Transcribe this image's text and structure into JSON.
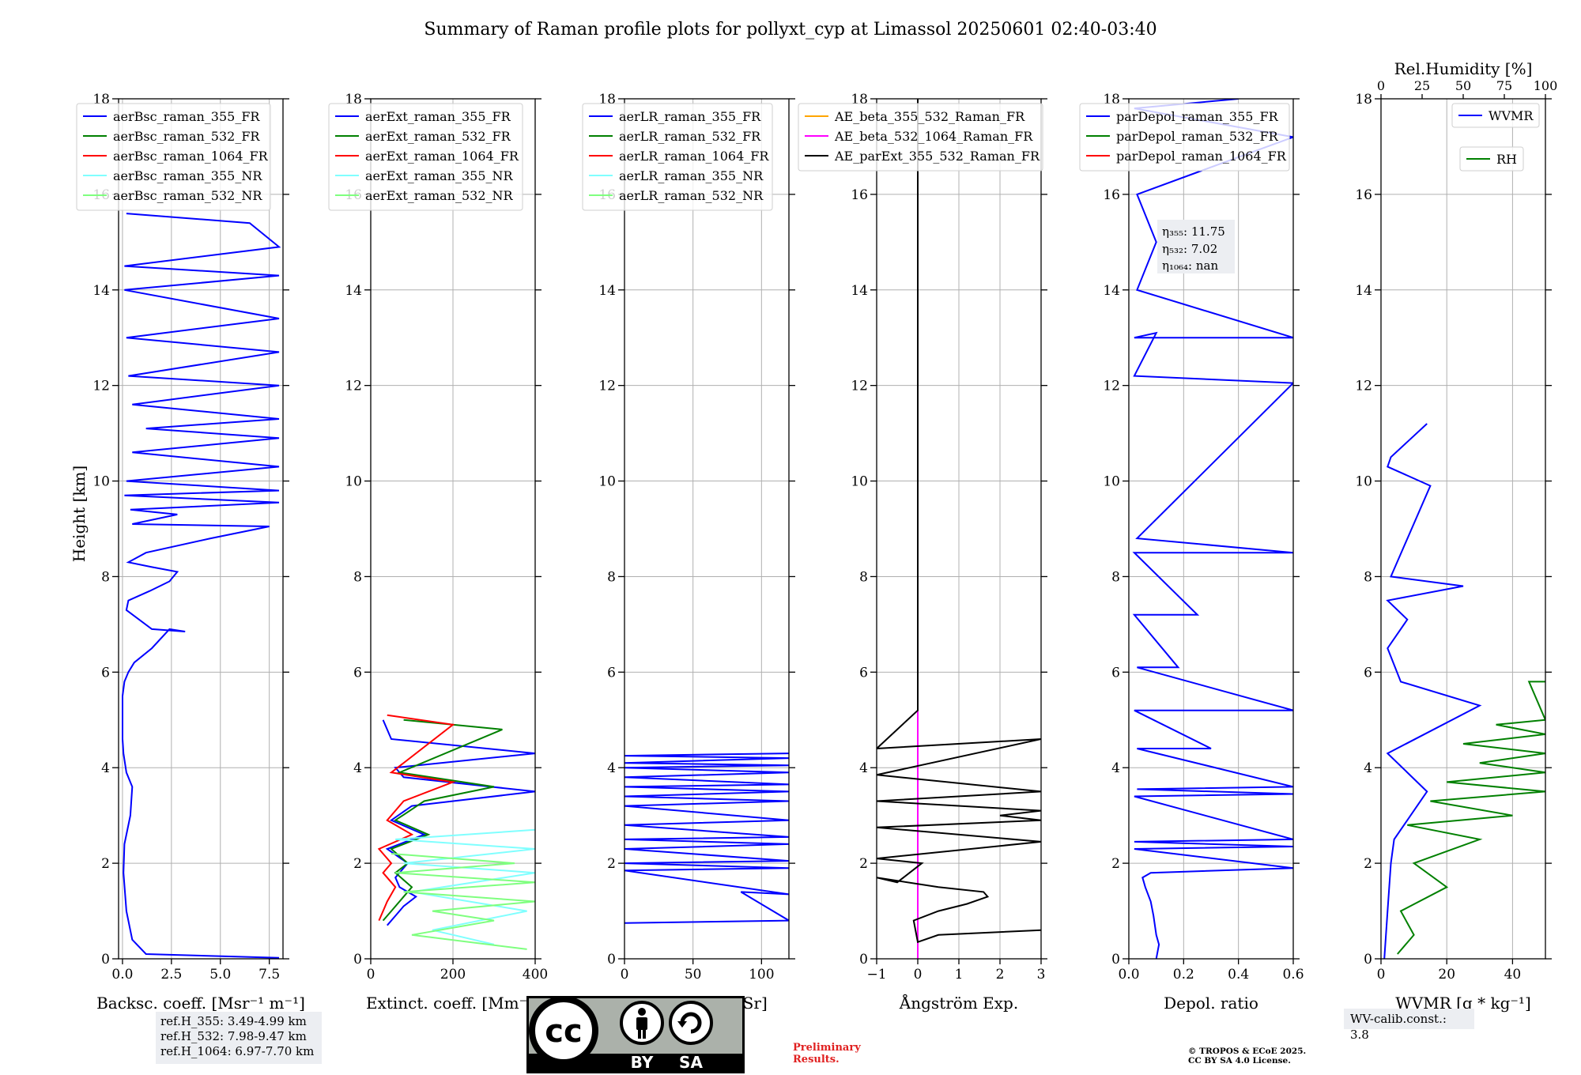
{
  "title": "Summary of Raman profile plots for pollyxt_cyp at Limassol 20250601 02:40-03:40",
  "ylabel": "Height [km]",
  "colors": {
    "blue": "#0000ff",
    "green": "#008000",
    "red": "#ff0000",
    "cyan": "#80ffff",
    "lightgreen": "#7fff7f",
    "orange": "#ffa500",
    "magenta": "#ff00ff",
    "black": "#000000",
    "grid": "#b0b0b0",
    "box_bg": "#eceef2"
  },
  "chart_data": [
    {
      "type": "line",
      "xlabel": "Backsc. coeff. [Msr⁻¹ m⁻¹]",
      "xlim": [
        -0.2,
        8.2
      ],
      "xticks": [
        "0.0",
        "2.5",
        "5.0",
        "7.5"
      ],
      "xtick_values": [
        0,
        2.5,
        5,
        7.5
      ],
      "ylim": [
        0,
        18
      ],
      "yticks": [
        "0",
        "2",
        "4",
        "6",
        "8",
        "10",
        "12",
        "14",
        "16",
        "18"
      ],
      "legend": [
        "aerBsc_raman_355_FR",
        "aerBsc_raman_532_FR",
        "aerBsc_raman_1064_FR",
        "aerBsc_raman_355_NR",
        "aerBsc_raman_532_NR"
      ],
      "legend_colors": [
        "blue",
        "green",
        "red",
        "cyan",
        "lightgreen"
      ],
      "legend_position": "top-left",
      "series": [
        {
          "name": "aerBsc_raman_355_FR",
          "color": "blue",
          "x": [
            8.0,
            1.2,
            0.5,
            0.2,
            0.05,
            0.1,
            0.4,
            0.5,
            0.2,
            0.05,
            0.0,
            0.0,
            0.1,
            0.3,
            0.6,
            1.5,
            2.4,
            3.2,
            1.5,
            0.2,
            0.3,
            1.4,
            2.4,
            2.8,
            1.5,
            0.3,
            1.2,
            4.5,
            7.5,
            0.5,
            2.8,
            0.4,
            8.0,
            0.1,
            8.0,
            0.2,
            8.0,
            0.5,
            8.0,
            1.2,
            8.0,
            0.5,
            8.0,
            0.3,
            8.0,
            0.2,
            8.0,
            0.1,
            8.0,
            0.1,
            8.0,
            6.5,
            0.2
          ],
          "y": [
            0.02,
            0.1,
            0.4,
            1.0,
            1.8,
            2.4,
            3.0,
            3.6,
            3.9,
            4.3,
            4.6,
            5.5,
            5.8,
            6.0,
            6.2,
            6.5,
            6.9,
            6.85,
            6.9,
            7.3,
            7.5,
            7.7,
            7.9,
            8.1,
            8.2,
            8.3,
            8.5,
            8.8,
            9.05,
            9.1,
            9.3,
            9.4,
            9.55,
            9.7,
            9.8,
            10.0,
            10.3,
            10.6,
            10.9,
            11.1,
            11.3,
            11.6,
            12.0,
            12.2,
            12.7,
            13.0,
            13.4,
            14.0,
            14.3,
            14.5,
            14.9,
            15.4,
            15.6
          ]
        },
        {
          "name": "aerBsc_raman_532_FR",
          "color": "green",
          "x": [],
          "y": []
        },
        {
          "name": "aerBsc_raman_1064_FR",
          "color": "red",
          "x": [],
          "y": []
        },
        {
          "name": "aerBsc_raman_355_NR",
          "color": "cyan",
          "x": [],
          "y": []
        },
        {
          "name": "aerBsc_raman_532_NR",
          "color": "lightgreen",
          "x": [],
          "y": []
        }
      ]
    },
    {
      "type": "line",
      "xlabel": "Extinct. coeff. [Mm⁻¹]",
      "xlim": [
        0,
        400
      ],
      "xticks": [
        "0",
        "200",
        "400"
      ],
      "xtick_values": [
        0,
        200,
        400
      ],
      "ylim": [
        0,
        18
      ],
      "yticks": [
        "0",
        "2",
        "4",
        "6",
        "8",
        "10",
        "12",
        "14",
        "16",
        "18"
      ],
      "legend": [
        "aerExt_raman_355_FR",
        "aerExt_raman_532_FR",
        "aerExt_raman_1064_FR",
        "aerExt_raman_355_NR",
        "aerExt_raman_532_NR"
      ],
      "legend_colors": [
        "blue",
        "green",
        "red",
        "cyan",
        "lightgreen"
      ],
      "legend_position": "top-left",
      "series": [
        {
          "name": "aerExt_raman_355_FR",
          "color": "blue",
          "x": [
            40,
            60,
            80,
            110,
            70,
            60,
            90,
            40,
            130,
            50,
            100,
            400,
            80,
            60,
            400,
            50,
            30
          ],
          "y": [
            0.7,
            0.9,
            1.1,
            1.3,
            1.5,
            1.7,
            2.0,
            2.3,
            2.6,
            2.9,
            3.2,
            3.5,
            3.8,
            4.0,
            4.3,
            4.6,
            5.0
          ]
        },
        {
          "name": "aerExt_raman_532_FR",
          "color": "green",
          "x": [
            30,
            50,
            70,
            100,
            60,
            90,
            50,
            140,
            60,
            130,
            300,
            70,
            320,
            80
          ],
          "y": [
            0.8,
            1.0,
            1.2,
            1.5,
            1.8,
            2.0,
            2.3,
            2.6,
            2.9,
            3.3,
            3.6,
            3.9,
            4.8,
            5.0
          ]
        },
        {
          "name": "aerExt_raman_1064_FR",
          "color": "red",
          "x": [
            20,
            30,
            40,
            60,
            30,
            50,
            20,
            100,
            40,
            80,
            200,
            50,
            200,
            40
          ],
          "y": [
            0.8,
            1.0,
            1.2,
            1.5,
            1.8,
            2.0,
            2.3,
            2.6,
            2.9,
            3.3,
            3.7,
            3.9,
            4.9,
            5.1
          ]
        },
        {
          "name": "aerExt_raman_355_NR",
          "color": "cyan",
          "x": [
            300,
            150,
            380,
            100,
            400,
            80,
            400,
            60,
            400
          ],
          "y": [
            0.3,
            0.6,
            1.0,
            1.4,
            1.8,
            2.0,
            2.3,
            2.5,
            2.7
          ]
        },
        {
          "name": "aerExt_raman_532_NR",
          "color": "lightgreen",
          "x": [
            380,
            100,
            300,
            150,
            400,
            80,
            400,
            60,
            350,
            50
          ],
          "y": [
            0.2,
            0.5,
            0.8,
            1.0,
            1.2,
            1.4,
            1.6,
            1.8,
            2.0,
            2.2
          ]
        }
      ]
    },
    {
      "type": "line",
      "xlabel": "Lidar ratio [Sr]",
      "xlim": [
        0,
        120
      ],
      "xticks": [
        "0",
        "50",
        "100"
      ],
      "xtick_values": [
        0,
        50,
        100
      ],
      "ylim": [
        0,
        18
      ],
      "yticks": [
        "0",
        "2",
        "4",
        "6",
        "8",
        "10",
        "12",
        "14",
        "16",
        "18"
      ],
      "legend": [
        "aerLR_raman_355_FR",
        "aerLR_raman_532_FR",
        "aerLR_raman_1064_FR",
        "aerLR_raman_355_NR",
        "aerLR_raman_532_NR"
      ],
      "legend_colors": [
        "blue",
        "green",
        "red",
        "cyan",
        "lightgreen"
      ],
      "legend_position": "top-left",
      "series": [
        {
          "name": "aerLR_raman_355_FR",
          "color": "blue",
          "x": [
            0,
            120,
            85,
            120,
            0,
            120,
            0,
            120,
            0,
            120,
            0,
            120,
            0,
            120,
            0,
            120,
            0,
            120,
            0,
            120,
            0,
            120,
            0,
            120,
            0,
            120,
            0,
            120
          ],
          "y": [
            0.75,
            0.8,
            1.4,
            1.35,
            1.85,
            1.9,
            2.0,
            2.05,
            2.3,
            2.4,
            2.5,
            2.55,
            2.8,
            2.9,
            3.2,
            3.3,
            3.4,
            3.5,
            3.6,
            3.65,
            3.8,
            3.9,
            4.0,
            4.05,
            4.1,
            4.2,
            4.25,
            4.3
          ]
        },
        {
          "name": "aerLR_raman_532_FR",
          "color": "green",
          "x": [],
          "y": []
        },
        {
          "name": "aerLR_raman_1064_FR",
          "color": "red",
          "x": [],
          "y": []
        },
        {
          "name": "aerLR_raman_355_NR",
          "color": "cyan",
          "x": [],
          "y": []
        },
        {
          "name": "aerLR_raman_532_NR",
          "color": "lightgreen",
          "x": [],
          "y": []
        }
      ]
    },
    {
      "type": "line",
      "xlabel": "Ångström Exp.",
      "xlim": [
        -1,
        3
      ],
      "xticks": [
        "−1",
        "0",
        "1",
        "2",
        "3"
      ],
      "xtick_values": [
        -1,
        0,
        1,
        2,
        3
      ],
      "ylim": [
        0,
        18
      ],
      "yticks": [
        "0",
        "2",
        "4",
        "6",
        "8",
        "10",
        "12",
        "14",
        "16",
        "18"
      ],
      "legend": [
        "AE_beta_355_532_Raman_FR",
        "AE_beta_532_1064_Raman_FR",
        "AE_parExt_355_532_Raman_FR"
      ],
      "legend_colors": [
        "orange",
        "magenta",
        "black"
      ],
      "legend_position": "top-right",
      "series": [
        {
          "name": "AE_beta_355_532_Raman_FR",
          "color": "orange",
          "x": [],
          "y": []
        },
        {
          "name": "AE_beta_532_1064_Raman_FR",
          "color": "magenta",
          "x": [
            0,
            0
          ],
          "y": [
            0.0,
            5.2
          ]
        },
        {
          "name": "AE_parExt_355_532_Raman_FR",
          "color": "black",
          "x": [
            3.0,
            0.5,
            0.0,
            -0.1,
            0.5,
            1.2,
            1.7,
            1.6,
            0.5,
            -1.0,
            -0.5,
            -0.2,
            0.1,
            -1.0,
            3.0,
            -1.0,
            3.0,
            2.0,
            3.0,
            -1.0,
            3.0,
            -1.0,
            3.0,
            -1.0,
            0.0,
            0.0
          ],
          "y": [
            0.6,
            0.5,
            0.35,
            0.8,
            1.0,
            1.15,
            1.3,
            1.4,
            1.5,
            1.7,
            1.6,
            1.8,
            2.0,
            2.1,
            2.45,
            2.75,
            2.9,
            3.0,
            3.1,
            3.3,
            3.5,
            3.85,
            4.6,
            4.4,
            5.2,
            18
          ]
        }
      ]
    },
    {
      "type": "line",
      "xlabel": "Depol. ratio",
      "xlim": [
        0,
        0.6
      ],
      "xticks": [
        "0.0",
        "0.2",
        "0.4",
        "0.6"
      ],
      "xtick_values": [
        0,
        0.2,
        0.4,
        0.6
      ],
      "ylim": [
        0,
        18
      ],
      "yticks": [
        "0",
        "2",
        "4",
        "6",
        "8",
        "10",
        "12",
        "14",
        "16",
        "18"
      ],
      "legend": [
        "parDepol_raman_355_FR",
        "parDepol_raman_532_FR",
        "parDepol_raman_1064_FR"
      ],
      "legend_colors": [
        "blue",
        "green",
        "red"
      ],
      "legend_position": "top-left",
      "annotation": {
        "eta355": "η₃₅₅: 11.75",
        "eta532": "η₅₃₂: 7.02",
        "eta1064": "η₁₀₆₄: nan"
      },
      "series": [
        {
          "name": "parDepol_raman_355_FR",
          "color": "blue",
          "x": [
            0.1,
            0.11,
            0.1,
            0.09,
            0.08,
            0.06,
            0.05,
            0.08,
            0.6,
            0.02,
            0.6,
            0.02,
            0.6,
            0.02,
            0.6,
            0.03,
            0.6,
            0.03,
            0.3,
            0.02,
            0.6,
            0.03,
            0.18,
            0.02,
            0.25,
            0.02,
            0.6,
            0.03,
            0.6,
            0.02,
            0.1,
            0.02,
            0.6,
            0.03,
            0.1,
            0.03,
            0.6,
            0.02,
            0.4
          ],
          "y": [
            0.0,
            0.3,
            0.5,
            0.9,
            1.2,
            1.5,
            1.7,
            1.8,
            1.9,
            2.3,
            2.35,
            2.45,
            2.5,
            3.4,
            3.45,
            3.55,
            3.6,
            4.4,
            4.4,
            5.2,
            5.2,
            6.1,
            6.1,
            7.2,
            7.2,
            8.5,
            8.5,
            8.8,
            12.05,
            12.2,
            13.1,
            13.0,
            13.0,
            14.0,
            15.0,
            16.0,
            17.2,
            17.8,
            18.0
          ]
        },
        {
          "name": "parDepol_raman_532_FR",
          "color": "green",
          "x": [],
          "y": []
        },
        {
          "name": "parDepol_raman_1064_FR",
          "color": "red",
          "x": [],
          "y": []
        }
      ]
    },
    {
      "type": "line",
      "xlabel": "WVMR [g * kg⁻¹]",
      "top_xlabel": "Rel.Humidity [%]",
      "xlim": [
        0,
        50
      ],
      "xticks": [
        "0",
        "20",
        "40"
      ],
      "xtick_values": [
        0,
        20,
        40
      ],
      "top_xticks": [
        "0",
        "25",
        "50",
        "75",
        "100"
      ],
      "ylim": [
        0,
        18
      ],
      "yticks": [
        "0",
        "2",
        "4",
        "6",
        "8",
        "10",
        "12",
        "14",
        "16",
        "18"
      ],
      "legend": [
        "WVMR",
        "RH"
      ],
      "legend_colors": [
        "blue",
        "green"
      ],
      "legend_position": "top-right",
      "series": [
        {
          "name": "WVMR",
          "color": "blue",
          "x": [
            1,
            2,
            3,
            4,
            14,
            2,
            30,
            6,
            2,
            8,
            2,
            25,
            3,
            15,
            2,
            3,
            14
          ],
          "y": [
            0.0,
            1.0,
            2.0,
            2.5,
            3.5,
            4.3,
            5.3,
            5.8,
            6.5,
            7.1,
            7.5,
            7.8,
            8.0,
            9.9,
            10.3,
            10.5,
            11.2
          ]
        },
        {
          "name": "RH",
          "color": "green",
          "x": [
            5,
            10,
            6,
            20,
            10,
            30,
            8,
            40,
            15,
            50,
            20,
            50,
            30,
            50,
            25,
            50,
            35,
            50,
            45,
            50
          ],
          "y": [
            0.1,
            0.5,
            1.0,
            1.5,
            2.0,
            2.5,
            2.8,
            3.0,
            3.3,
            3.5,
            3.7,
            3.9,
            4.1,
            4.3,
            4.5,
            4.7,
            4.9,
            5.0,
            5.8,
            5.8
          ]
        }
      ]
    }
  ],
  "annotations": {
    "ref_h_355": "ref.H_355: 3.49-4.99 km",
    "ref_h_532": "ref.H_532: 7.98-9.47 km",
    "ref_h_1064": "ref.H_1064: 6.97-7.70 km",
    "wv_calib": "WV-calib.const.: 3.8",
    "preliminary_1": "Preliminary",
    "preliminary_2": "Results.",
    "copyright_1": "© TROPOS & ECoE 2025.",
    "copyright_2": "CC BY SA 4.0 License.",
    "cc_badge_by": "BY",
    "cc_badge_sa": "SA",
    "cc_badge_cc": "cc"
  }
}
